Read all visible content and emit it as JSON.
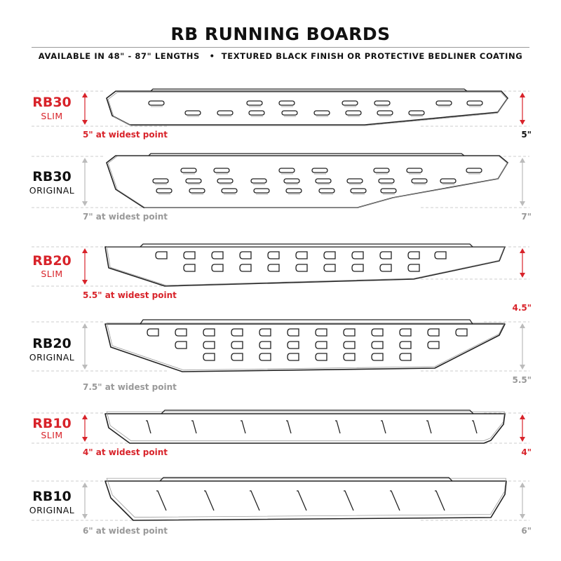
{
  "header": {
    "title": "RB RUNNING BOARDS",
    "subtitle": "AVAILABLE IN 48\" - 87\" LENGTHS   •  TEXTURED BLACK FINISH OR PROTECTIVE BEDLINER COATING"
  },
  "colors": {
    "accent": "#d8232a",
    "muted": "#999999",
    "ink": "#111111"
  },
  "boards": [
    {
      "model": "RB30",
      "variant": "SLIM",
      "width_note": "5\" at widest point",
      "right_dim": "5\"",
      "color": "red"
    },
    {
      "model": "RB30",
      "variant": "ORIGINAL",
      "width_note": "7\" at widest point",
      "right_dim": "7\"",
      "color": "gray"
    },
    {
      "model": "RB20",
      "variant": "SLIM",
      "width_note": "5.5\" at widest point",
      "right_dim": "4.5\"",
      "color": "red"
    },
    {
      "model": "RB20",
      "variant": "ORIGINAL",
      "width_note": "7.5\" at widest point",
      "right_dim": "5.5\"",
      "color": "gray"
    },
    {
      "model": "RB10",
      "variant": "SLIM",
      "width_note": "4\" at widest point",
      "right_dim": "4\"",
      "color": "red"
    },
    {
      "model": "RB10",
      "variant": "ORIGINAL",
      "width_note": "6\" at widest point",
      "right_dim": "6\"",
      "color": "gray"
    }
  ]
}
